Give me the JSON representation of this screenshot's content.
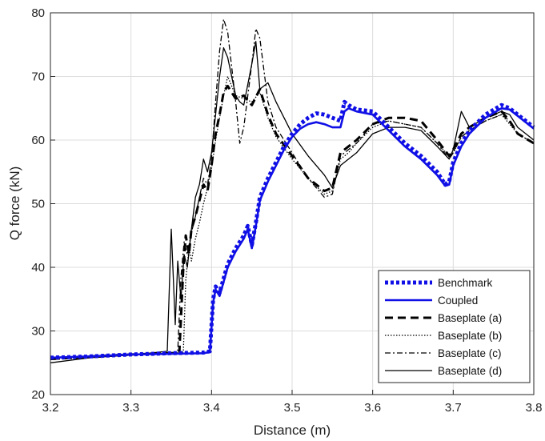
{
  "chart_data": {
    "type": "line",
    "xlabel": "Distance (m)",
    "ylabel": "Q force (kN)",
    "xlim": [
      3.2,
      3.8
    ],
    "ylim": [
      20,
      80
    ],
    "xticks": [
      3.2,
      3.3,
      3.4,
      3.5,
      3.6,
      3.7,
      3.8
    ],
    "yticks": [
      20,
      30,
      40,
      50,
      60,
      70,
      80
    ],
    "xtick_labels": [
      "3.2",
      "3.3",
      "3.4",
      "3.5",
      "3.6",
      "3.7",
      "3.8"
    ],
    "ytick_labels": [
      "20",
      "30",
      "40",
      "50",
      "60",
      "70",
      "80"
    ],
    "grid": true,
    "legend_position": "bottom-right",
    "series": [
      {
        "name": "Benchmark",
        "color": "#1010e6",
        "style": "dotted-thick",
        "x": [
          3.2,
          3.25,
          3.3,
          3.35,
          3.39,
          3.398,
          3.402,
          3.405,
          3.41,
          3.42,
          3.43,
          3.44,
          3.445,
          3.45,
          3.455,
          3.46,
          3.47,
          3.48,
          3.49,
          3.5,
          3.51,
          3.52,
          3.53,
          3.54,
          3.55,
          3.56,
          3.565,
          3.57,
          3.58,
          3.6,
          3.62,
          3.64,
          3.66,
          3.68,
          3.69,
          3.695,
          3.7,
          3.71,
          3.72,
          3.74,
          3.76,
          3.77,
          3.78,
          3.8
        ],
        "y": [
          25.8,
          26.0,
          26.3,
          26.5,
          26.6,
          26.8,
          35.0,
          37.0,
          36.0,
          40.5,
          43.0,
          45.0,
          46.5,
          43.5,
          47.0,
          51.0,
          54.0,
          56.5,
          59.0,
          61.0,
          62.5,
          63.5,
          64.2,
          64.0,
          63.5,
          63.0,
          66.0,
          65.5,
          64.8,
          64.5,
          62.0,
          59.5,
          57.5,
          55.0,
          53.0,
          53.5,
          56.5,
          59.5,
          61.5,
          64.0,
          65.5,
          65.0,
          64.0,
          62.0
        ]
      },
      {
        "name": "Coupled",
        "color": "#1010e6",
        "style": "solid-thick",
        "x": [
          3.2,
          3.25,
          3.3,
          3.35,
          3.39,
          3.398,
          3.402,
          3.405,
          3.41,
          3.42,
          3.43,
          3.44,
          3.445,
          3.45,
          3.455,
          3.46,
          3.47,
          3.48,
          3.49,
          3.5,
          3.51,
          3.52,
          3.53,
          3.54,
          3.55,
          3.56,
          3.565,
          3.57,
          3.58,
          3.6,
          3.62,
          3.64,
          3.66,
          3.68,
          3.69,
          3.695,
          3.7,
          3.71,
          3.72,
          3.74,
          3.76,
          3.77,
          3.78,
          3.8
        ],
        "y": [
          25.8,
          26.0,
          26.3,
          26.4,
          26.5,
          26.7,
          34.5,
          36.5,
          35.5,
          40.0,
          42.5,
          44.5,
          46.0,
          43.0,
          46.5,
          50.5,
          53.5,
          56.0,
          58.5,
          60.5,
          61.8,
          62.5,
          62.8,
          62.5,
          62.0,
          62.0,
          64.5,
          65.0,
          64.5,
          64.0,
          61.5,
          59.0,
          57.0,
          54.5,
          52.8,
          53.0,
          56.0,
          59.0,
          61.0,
          63.5,
          65.0,
          64.8,
          63.8,
          61.8
        ]
      },
      {
        "name": "Baseplate (a)",
        "color": "#000000",
        "style": "dashed-thick",
        "x": [
          3.2,
          3.25,
          3.3,
          3.35,
          3.36,
          3.365,
          3.368,
          3.372,
          3.375,
          3.38,
          3.385,
          3.39,
          3.395,
          3.4,
          3.405,
          3.41,
          3.415,
          3.42,
          3.43,
          3.44,
          3.45,
          3.46,
          3.47,
          3.48,
          3.5,
          3.52,
          3.54,
          3.55,
          3.56,
          3.57,
          3.58,
          3.6,
          3.62,
          3.64,
          3.66,
          3.68,
          3.695,
          3.7,
          3.71,
          3.72,
          3.74,
          3.76,
          3.77,
          3.78,
          3.8
        ],
        "y": [
          25.6,
          26.0,
          26.3,
          26.5,
          26.6,
          40.0,
          45.0,
          42.0,
          46.0,
          48.0,
          50.5,
          53.0,
          52.0,
          56.0,
          61.0,
          64.0,
          67.5,
          68.5,
          66.5,
          67.0,
          65.5,
          68.0,
          64.0,
          61.0,
          57.5,
          54.0,
          52.0,
          52.5,
          58.0,
          59.0,
          60.0,
          62.5,
          63.5,
          63.5,
          63.0,
          60.0,
          57.5,
          58.5,
          61.0,
          62.0,
          63.5,
          64.5,
          63.0,
          61.0,
          59.5
        ]
      },
      {
        "name": "Baseplate (b)",
        "color": "#000000",
        "style": "dotted-thin",
        "x": [
          3.2,
          3.25,
          3.3,
          3.35,
          3.365,
          3.368,
          3.372,
          3.375,
          3.38,
          3.385,
          3.39,
          3.395,
          3.4,
          3.405,
          3.41,
          3.415,
          3.42,
          3.43,
          3.44,
          3.45,
          3.46,
          3.47,
          3.48,
          3.5,
          3.52,
          3.54,
          3.55,
          3.56,
          3.57,
          3.58,
          3.6,
          3.62,
          3.64,
          3.66,
          3.68,
          3.695,
          3.7,
          3.71,
          3.72,
          3.74,
          3.76,
          3.77,
          3.78,
          3.8
        ],
        "y": [
          25.7,
          26.0,
          26.3,
          26.5,
          26.7,
          38.0,
          43.0,
          41.0,
          44.5,
          47.0,
          50.0,
          52.5,
          55.5,
          60.0,
          63.5,
          67.0,
          70.0,
          67.0,
          66.5,
          66.0,
          67.5,
          63.5,
          60.5,
          57.0,
          54.0,
          51.5,
          52.0,
          57.0,
          58.0,
          59.5,
          62.0,
          63.0,
          62.5,
          62.0,
          59.5,
          57.5,
          58.0,
          60.5,
          61.5,
          63.0,
          64.0,
          62.5,
          61.0,
          59.5
        ]
      },
      {
        "name": "Baseplate (c)",
        "color": "#000000",
        "style": "dashdot-thin",
        "x": [
          3.2,
          3.25,
          3.3,
          3.35,
          3.358,
          3.362,
          3.366,
          3.37,
          3.375,
          3.38,
          3.385,
          3.39,
          3.395,
          3.4,
          3.405,
          3.41,
          3.415,
          3.42,
          3.43,
          3.435,
          3.44,
          3.45,
          3.455,
          3.46,
          3.47,
          3.48,
          3.5,
          3.52,
          3.54,
          3.55,
          3.56,
          3.57,
          3.58,
          3.6,
          3.62,
          3.64,
          3.66,
          3.68,
          3.695,
          3.7,
          3.71,
          3.72,
          3.74,
          3.76,
          3.77,
          3.78,
          3.8
        ],
        "y": [
          25.5,
          25.8,
          26.2,
          26.5,
          26.8,
          38.5,
          44.0,
          42.0,
          45.5,
          48.0,
          51.0,
          54.0,
          53.0,
          57.0,
          66.0,
          74.0,
          79.0,
          77.0,
          66.0,
          59.5,
          62.0,
          72.0,
          77.5,
          76.0,
          66.0,
          62.0,
          58.0,
          54.0,
          51.0,
          51.5,
          57.5,
          58.5,
          59.5,
          62.5,
          63.0,
          62.5,
          62.0,
          59.5,
          57.0,
          58.0,
          60.5,
          61.5,
          63.0,
          64.0,
          63.0,
          61.0,
          59.5
        ]
      },
      {
        "name": "Baseplate (d)",
        "color": "#000000",
        "style": "solid-thin",
        "x": [
          3.2,
          3.25,
          3.3,
          3.345,
          3.35,
          3.355,
          3.358,
          3.362,
          3.366,
          3.37,
          3.375,
          3.38,
          3.385,
          3.39,
          3.395,
          3.4,
          3.405,
          3.41,
          3.415,
          3.42,
          3.43,
          3.435,
          3.44,
          3.45,
          3.455,
          3.46,
          3.47,
          3.48,
          3.5,
          3.52,
          3.54,
          3.55,
          3.56,
          3.57,
          3.58,
          3.6,
          3.62,
          3.64,
          3.66,
          3.68,
          3.695,
          3.7,
          3.71,
          3.72,
          3.74,
          3.76,
          3.77,
          3.78,
          3.8
        ],
        "y": [
          25.0,
          25.8,
          26.2,
          26.8,
          46.0,
          31.0,
          41.0,
          35.0,
          42.0,
          40.0,
          46.0,
          51.0,
          53.0,
          57.0,
          55.0,
          58.0,
          64.0,
          70.0,
          74.5,
          73.0,
          67.0,
          66.0,
          65.5,
          72.0,
          75.5,
          68.0,
          69.0,
          66.0,
          61.0,
          57.5,
          54.5,
          52.5,
          56.0,
          57.0,
          58.0,
          61.0,
          62.0,
          62.0,
          61.5,
          59.0,
          57.0,
          58.5,
          64.5,
          62.0,
          63.5,
          64.5,
          64.0,
          62.0,
          60.0
        ]
      }
    ]
  }
}
